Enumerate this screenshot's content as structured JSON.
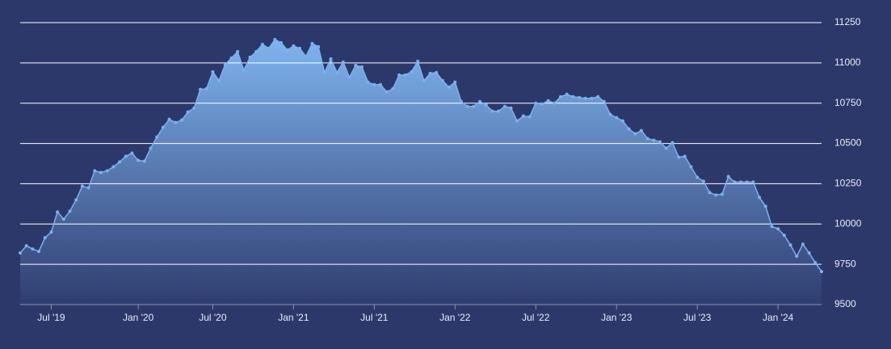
{
  "chart_data": {
    "type": "area",
    "categories": [
      null,
      null,
      null,
      null,
      null,
      "Jul '19",
      null,
      null,
      null,
      null,
      null,
      null,
      null,
      null,
      null,
      null,
      null,
      null,
      null,
      "Jan '20",
      null,
      null,
      null,
      null,
      null,
      null,
      null,
      null,
      null,
      null,
      null,
      "Jul '20",
      null,
      null,
      null,
      null,
      null,
      null,
      null,
      null,
      null,
      null,
      null,
      null,
      "Jan '21",
      null,
      null,
      null,
      null,
      null,
      null,
      null,
      null,
      null,
      null,
      null,
      null,
      "Jul '21",
      null,
      null,
      null,
      null,
      null,
      null,
      null,
      null,
      null,
      null,
      null,
      null,
      "Jan '22",
      null,
      null,
      null,
      null,
      null,
      null,
      null,
      null,
      null,
      null,
      null,
      null,
      "Jul '22",
      null,
      null,
      null,
      null,
      null,
      null,
      null,
      null,
      null,
      null,
      null,
      null,
      "Jan '23",
      null,
      null,
      null,
      null,
      null,
      null,
      null,
      null,
      null,
      null,
      null,
      null,
      "Jul '23",
      null,
      null,
      null,
      null,
      null,
      null,
      null,
      null,
      null,
      null,
      null,
      null,
      "Jan '24",
      null,
      null,
      null,
      null,
      null,
      null,
      null
    ],
    "values": [
      9820,
      9865,
      9845,
      9830,
      9915,
      9950,
      10075,
      10030,
      10080,
      10150,
      10235,
      10225,
      10330,
      10320,
      10330,
      10355,
      10385,
      10420,
      10440,
      10395,
      10390,
      10470,
      10540,
      10600,
      10650,
      10630,
      10645,
      10695,
      10720,
      10835,
      10840,
      10945,
      10890,
      10990,
      11030,
      11070,
      10955,
      11035,
      11070,
      11115,
      11090,
      11145,
      11125,
      11080,
      11105,
      11090,
      11040,
      11120,
      11100,
      10940,
      11025,
      10940,
      11005,
      10910,
      10985,
      10975,
      10880,
      10865,
      10865,
      10820,
      10840,
      10925,
      10925,
      10945,
      11010,
      10890,
      10935,
      10940,
      10890,
      10850,
      10880,
      10760,
      10730,
      10730,
      10760,
      10740,
      10700,
      10700,
      10730,
      10720,
      10640,
      10670,
      10665,
      10750,
      10745,
      10765,
      10750,
      10790,
      10805,
      10790,
      10785,
      10780,
      10780,
      10790,
      10760,
      10680,
      10660,
      10640,
      10590,
      10560,
      10580,
      10530,
      10520,
      10510,
      10470,
      10505,
      10415,
      10420,
      10355,
      10290,
      10265,
      10195,
      10180,
      10185,
      10295,
      10260,
      10260,
      10260,
      10260,
      10165,
      10110,
      9985,
      9970,
      9930,
      9870,
      9800,
      9875,
      9820,
      9760,
      9705
    ],
    "color": "#7ab2ee",
    "ylim": [
      9500,
      11250
    ],
    "yticks": [
      9500,
      9750,
      10000,
      10250,
      10500,
      10750,
      11000,
      11250
    ],
    "grid": true
  }
}
